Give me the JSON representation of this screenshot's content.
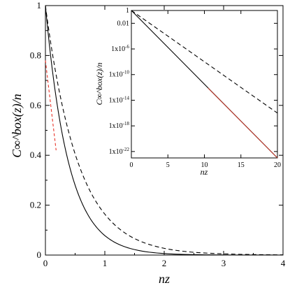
{
  "chart_data": [
    {
      "type": "line",
      "panel": "main",
      "xlabel": "nz",
      "ylabel": "C∞^box(z)/n",
      "xlim": [
        0,
        4
      ],
      "ylim": [
        0,
        1
      ],
      "xticks": [
        "0",
        "1",
        "2",
        "3",
        "4"
      ],
      "yticks": [
        "0",
        "0.2",
        "0.4",
        "0.6",
        "0.8",
        "1"
      ],
      "series": [
        {
          "style": "solid",
          "color": "#000000",
          "x": [
            0,
            0.1,
            0.2,
            0.3,
            0.4,
            0.5,
            0.6,
            0.8,
            1.0,
            1.2,
            1.5,
            2.0,
            2.5,
            3.0,
            4.0
          ],
          "y": [
            1.0,
            0.774,
            0.6,
            0.465,
            0.361,
            0.28,
            0.217,
            0.13,
            0.078,
            0.047,
            0.022,
            0.0061,
            0.0017,
            0.0005,
            4e-05
          ]
        },
        {
          "style": "dashed",
          "color": "#000000",
          "x": [
            0,
            0.1,
            0.2,
            0.3,
            0.4,
            0.5,
            0.6,
            0.8,
            1.0,
            1.2,
            1.5,
            2.0,
            2.5,
            3.0,
            4.0
          ],
          "y": [
            1.0,
            0.834,
            0.697,
            0.582,
            0.486,
            0.405,
            0.338,
            0.235,
            0.164,
            0.114,
            0.066,
            0.027,
            0.011,
            0.005,
            0.0008
          ]
        },
        {
          "style": "dashed",
          "color": "#e8352a",
          "x": [
            0.0,
            0.18
          ],
          "y": [
            0.78,
            0.42
          ]
        }
      ]
    },
    {
      "type": "line",
      "panel": "inset",
      "xlabel": "nz",
      "ylabel": "C∞^box(z)/n",
      "xlim": [
        0,
        20
      ],
      "ylim_log10": [
        -23,
        0
      ],
      "yscale": "log",
      "xticks": [
        "0",
        "5",
        "10",
        "15",
        "20"
      ],
      "yticks": [
        "1",
        "0.01",
        "1x10^-6",
        "1x10^-10",
        "1x10^-14",
        "1x10^-18",
        "1x10^-22"
      ],
      "series": [
        {
          "style": "solid",
          "color": "#000000",
          "x": [
            0,
            20
          ],
          "log10_y": [
            0,
            -23
          ]
        },
        {
          "style": "dashed",
          "color": "#000000",
          "x": [
            0,
            20
          ],
          "log10_y": [
            0,
            -16
          ]
        },
        {
          "style": "solid",
          "color": "#c0392b",
          "x": [
            10.5,
            20
          ],
          "log10_y": [
            -12.1,
            -23
          ]
        }
      ]
    }
  ]
}
